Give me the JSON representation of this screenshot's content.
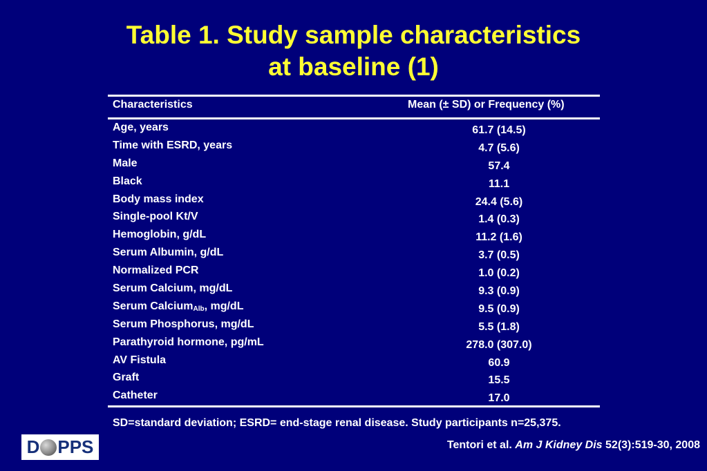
{
  "title": {
    "line1": "Table 1. Study sample characteristics",
    "line2": "at baseline (1)"
  },
  "table": {
    "headers": [
      "Characteristics",
      "Mean (± SD) or Frequency (%)"
    ],
    "rows": [
      {
        "label": "Age, years",
        "value": "61.7 (14.5)"
      },
      {
        "label": "Time with ESRD, years",
        "value": "4.7 (5.6)"
      },
      {
        "label": "Male",
        "value": "57.4"
      },
      {
        "label": "Black",
        "value": "11.1"
      },
      {
        "label": "Body mass index",
        "value": "24.4 (5.6)"
      },
      {
        "label": "Single-pool Kt/V",
        "value": "1.4 (0.3)"
      },
      {
        "label": "Hemoglobin, g/dL",
        "value": "11.2 (1.6)"
      },
      {
        "label": "Serum Albumin, g/dL",
        "value": "3.7 (0.5)"
      },
      {
        "label": "Normalized PCR",
        "value": "1.0 (0.2)"
      },
      {
        "label": "Serum Calcium, mg/dL",
        "value": "9.3 (0.9)"
      },
      {
        "label": "Serum Calcium",
        "label_sub": "Alb",
        "label_suffix": ", mg/dL",
        "value": "9.5 (0.9)"
      },
      {
        "label": "Serum Phosphorus, mg/dL",
        "value": "5.5 (1.8)"
      },
      {
        "label": "Parathyroid hormone, pg/mL",
        "value": "278.0 (307.0)"
      },
      {
        "label": "AV Fistula",
        "value": "60.9"
      },
      {
        "label": "Graft",
        "value": "15.5"
      },
      {
        "label": "Catheter",
        "value": "17.0"
      }
    ]
  },
  "footnote": "SD=standard deviation; ESRD= end-stage renal disease. Study participants n=25,375.",
  "citation": {
    "authors": "Tentori et al.",
    "journal": "Am J Kidney Dis",
    "ref": "52(3):519-30, 2008"
  },
  "logo": {
    "text_before": "D",
    "text_after": "PPS",
    "icon": "globe-icon"
  },
  "colors": {
    "background": "#00007a",
    "title": "#ffff33",
    "text": "#ffffff"
  }
}
